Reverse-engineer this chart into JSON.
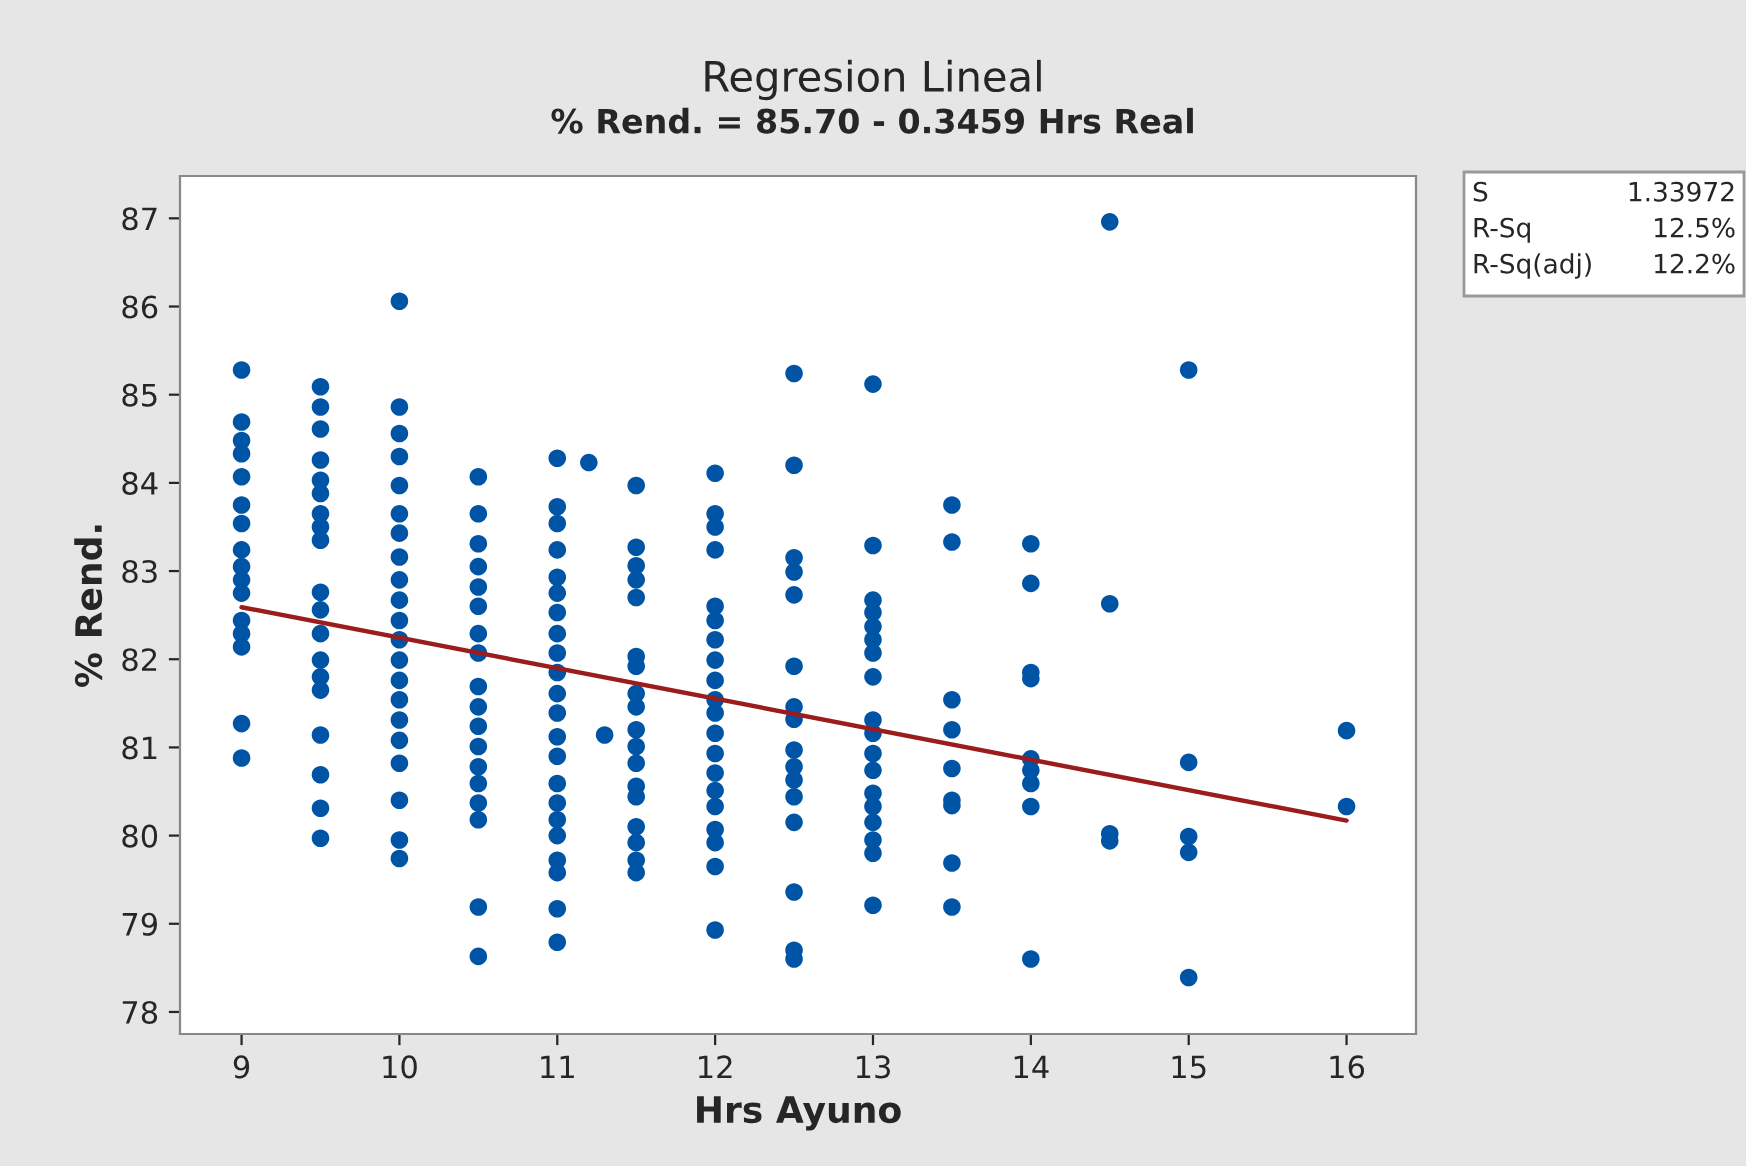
{
  "chart_data": {
    "type": "scatter",
    "title": "Regresion Lineal",
    "subtitle": "% Rend. = 85.70 - 0.3459 Hrs Real",
    "xlabel": "Hrs Ayuno",
    "ylabel": "% Rend.",
    "xlim": [
      8.61,
      16.44
    ],
    "ylim": [
      77.75,
      87.48
    ],
    "xticks": [
      9,
      10,
      11,
      12,
      13,
      14,
      15,
      16
    ],
    "yticks": [
      78,
      79,
      80,
      81,
      82,
      83,
      84,
      85,
      86,
      87
    ],
    "grid": false,
    "legend": false,
    "series": [
      {
        "marker": "circle",
        "color": "#0054a6",
        "x": [
          9,
          9,
          9,
          9,
          9,
          9,
          9,
          9,
          9,
          9,
          9,
          9,
          9,
          9,
          9,
          9,
          9.5,
          9.5,
          9.5,
          9.5,
          9.5,
          9.5,
          9.5,
          9.5,
          9.5,
          9.5,
          9.5,
          9.5,
          9.5,
          9.5,
          9.5,
          9.5,
          9.5,
          9.5,
          9.5,
          10,
          10,
          10,
          10,
          10,
          10,
          10,
          10,
          10,
          10,
          10,
          10,
          10,
          10,
          10,
          10,
          10,
          10,
          10,
          10,
          10,
          10.5,
          10.5,
          10.5,
          10.5,
          10.5,
          10.5,
          10.5,
          10.5,
          10.5,
          10.5,
          10.5,
          10.5,
          10.5,
          10.5,
          10.5,
          10.5,
          10.5,
          10.5,
          11,
          11,
          11,
          11,
          11,
          11,
          11,
          11,
          11,
          11,
          11,
          11,
          11,
          11,
          11,
          11,
          11,
          11,
          11,
          11,
          11,
          11,
          11.2,
          11.3,
          11.5,
          11.5,
          11.5,
          11.5,
          11.5,
          11.5,
          11.5,
          11.5,
          11.5,
          11.5,
          11.5,
          11.5,
          11.5,
          11.5,
          11.5,
          11.5,
          11.5,
          11.5,
          12,
          12,
          12,
          12,
          12,
          12,
          12,
          12,
          12,
          12,
          12,
          12,
          12,
          12,
          12,
          12,
          12,
          12,
          12,
          12,
          12.5,
          12.5,
          12.5,
          12.5,
          12.5,
          12.5,
          12.5,
          12.5,
          12.5,
          12.5,
          12.5,
          12.5,
          12.5,
          12.5,
          12.5,
          12.5,
          13,
          13,
          13,
          13,
          13,
          13,
          13,
          13,
          13,
          13,
          13,
          13,
          13,
          13,
          13,
          13,
          13,
          13,
          13.5,
          13.5,
          13.5,
          13.5,
          13.5,
          13.5,
          13.5,
          13.5,
          13.5,
          14,
          14,
          14,
          14,
          14,
          14,
          14,
          14,
          14,
          14.5,
          14.5,
          14.5,
          14.5,
          15,
          15,
          15,
          15,
          15,
          16,
          16
        ],
        "values": [
          85.28,
          84.69,
          84.48,
          84.33,
          84.07,
          83.75,
          83.54,
          83.24,
          83.05,
          82.9,
          82.75,
          82.44,
          82.29,
          82.14,
          81.27,
          80.88,
          85.09,
          84.86,
          84.61,
          84.26,
          84.03,
          83.88,
          83.65,
          83.5,
          83.35,
          82.76,
          82.56,
          82.29,
          81.99,
          81.8,
          81.65,
          81.14,
          80.69,
          80.31,
          79.97,
          86.06,
          84.86,
          84.56,
          84.3,
          83.97,
          83.65,
          83.43,
          83.16,
          82.9,
          82.67,
          82.44,
          82.22,
          81.99,
          81.76,
          81.54,
          81.31,
          81.08,
          80.82,
          80.4,
          79.95,
          79.74,
          84.07,
          83.65,
          83.31,
          83.05,
          82.82,
          82.6,
          82.29,
          82.07,
          81.69,
          81.46,
          81.24,
          81.01,
          80.78,
          80.59,
          80.37,
          80.18,
          79.19,
          78.63,
          84.28,
          83.73,
          83.54,
          83.24,
          82.93,
          82.75,
          82.53,
          82.29,
          82.07,
          81.85,
          81.61,
          81.39,
          81.12,
          80.9,
          80.59,
          80.37,
          80.18,
          80.0,
          79.72,
          79.58,
          79.17,
          78.79,
          84.23,
          81.14,
          83.97,
          83.27,
          83.06,
          82.9,
          82.7,
          82.03,
          81.92,
          81.61,
          81.46,
          81.2,
          81.01,
          80.82,
          80.56,
          80.44,
          80.1,
          79.92,
          79.72,
          79.58,
          84.11,
          83.65,
          83.5,
          83.24,
          82.6,
          82.44,
          82.22,
          81.99,
          81.76,
          81.54,
          81.39,
          81.16,
          80.93,
          80.71,
          80.51,
          80.33,
          80.07,
          79.92,
          79.65,
          78.93,
          85.24,
          84.2,
          83.15,
          82.99,
          82.73,
          81.92,
          81.46,
          81.32,
          80.97,
          80.78,
          80.63,
          80.44,
          80.15,
          79.36,
          78.7,
          78.6,
          85.12,
          83.29,
          82.67,
          82.53,
          82.37,
          82.22,
          82.07,
          81.8,
          81.31,
          81.16,
          80.93,
          80.74,
          80.48,
          80.33,
          80.15,
          79.95,
          79.8,
          79.21,
          83.75,
          83.33,
          81.54,
          81.2,
          80.76,
          80.4,
          80.34,
          79.69,
          79.19,
          83.31,
          82.86,
          81.85,
          81.78,
          80.87,
          80.74,
          80.59,
          80.33,
          78.6,
          86.96,
          82.63,
          80.02,
          79.94,
          85.28,
          80.83,
          79.99,
          79.81,
          78.39,
          81.19,
          80.33
        ]
      },
      {
        "type": "line",
        "color": "#9b1c1c",
        "x": [
          9,
          16
        ],
        "values": [
          82.59,
          80.17
        ]
      }
    ],
    "annotations": [
      "S",
      "1.33972",
      "R-Sq",
      "12.5%",
      "R-Sq(adj)",
      "12.2%"
    ]
  }
}
